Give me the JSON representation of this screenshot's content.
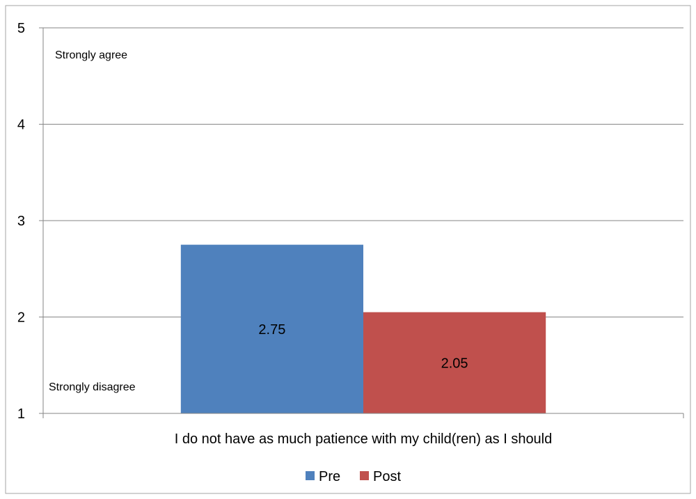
{
  "chart_data": {
    "type": "bar",
    "categories": [
      "I do not have as much patience with my child(ren) as I should"
    ],
    "series": [
      {
        "name": "Pre",
        "values": [
          2.75
        ],
        "color": "#4F81BD"
      },
      {
        "name": "Post",
        "values": [
          2.05
        ],
        "color": "#C0504D"
      }
    ],
    "ylim": [
      1,
      5
    ],
    "yticks": [
      "1",
      "2",
      "3",
      "4",
      "5"
    ],
    "annotations": [
      "Strongly agree",
      "Strongly disagree"
    ],
    "grid": true,
    "legend_position": "bottom"
  }
}
